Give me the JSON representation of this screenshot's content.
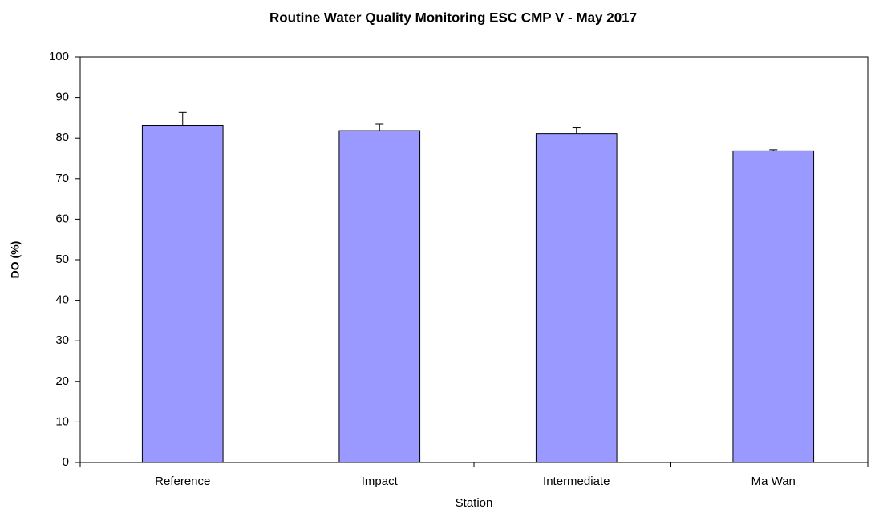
{
  "chart_data": {
    "type": "bar",
    "title": "Routine Water Quality Monitoring ESC CMP V - May 2017",
    "x_label": "Station",
    "y_label": "DO (%)",
    "categories": [
      "Reference",
      "Impact",
      "Intermediate",
      "Ma Wan"
    ],
    "values": [
      83.1,
      81.8,
      81.1,
      76.8
    ],
    "errors": [
      3.2,
      1.6,
      1.4,
      0.3
    ],
    "color": "#9999ff",
    "ylim": [
      0,
      100
    ],
    "yticks": [
      0,
      10,
      20,
      30,
      40,
      50,
      60,
      70,
      80,
      90,
      100
    ],
    "grid": false
  }
}
